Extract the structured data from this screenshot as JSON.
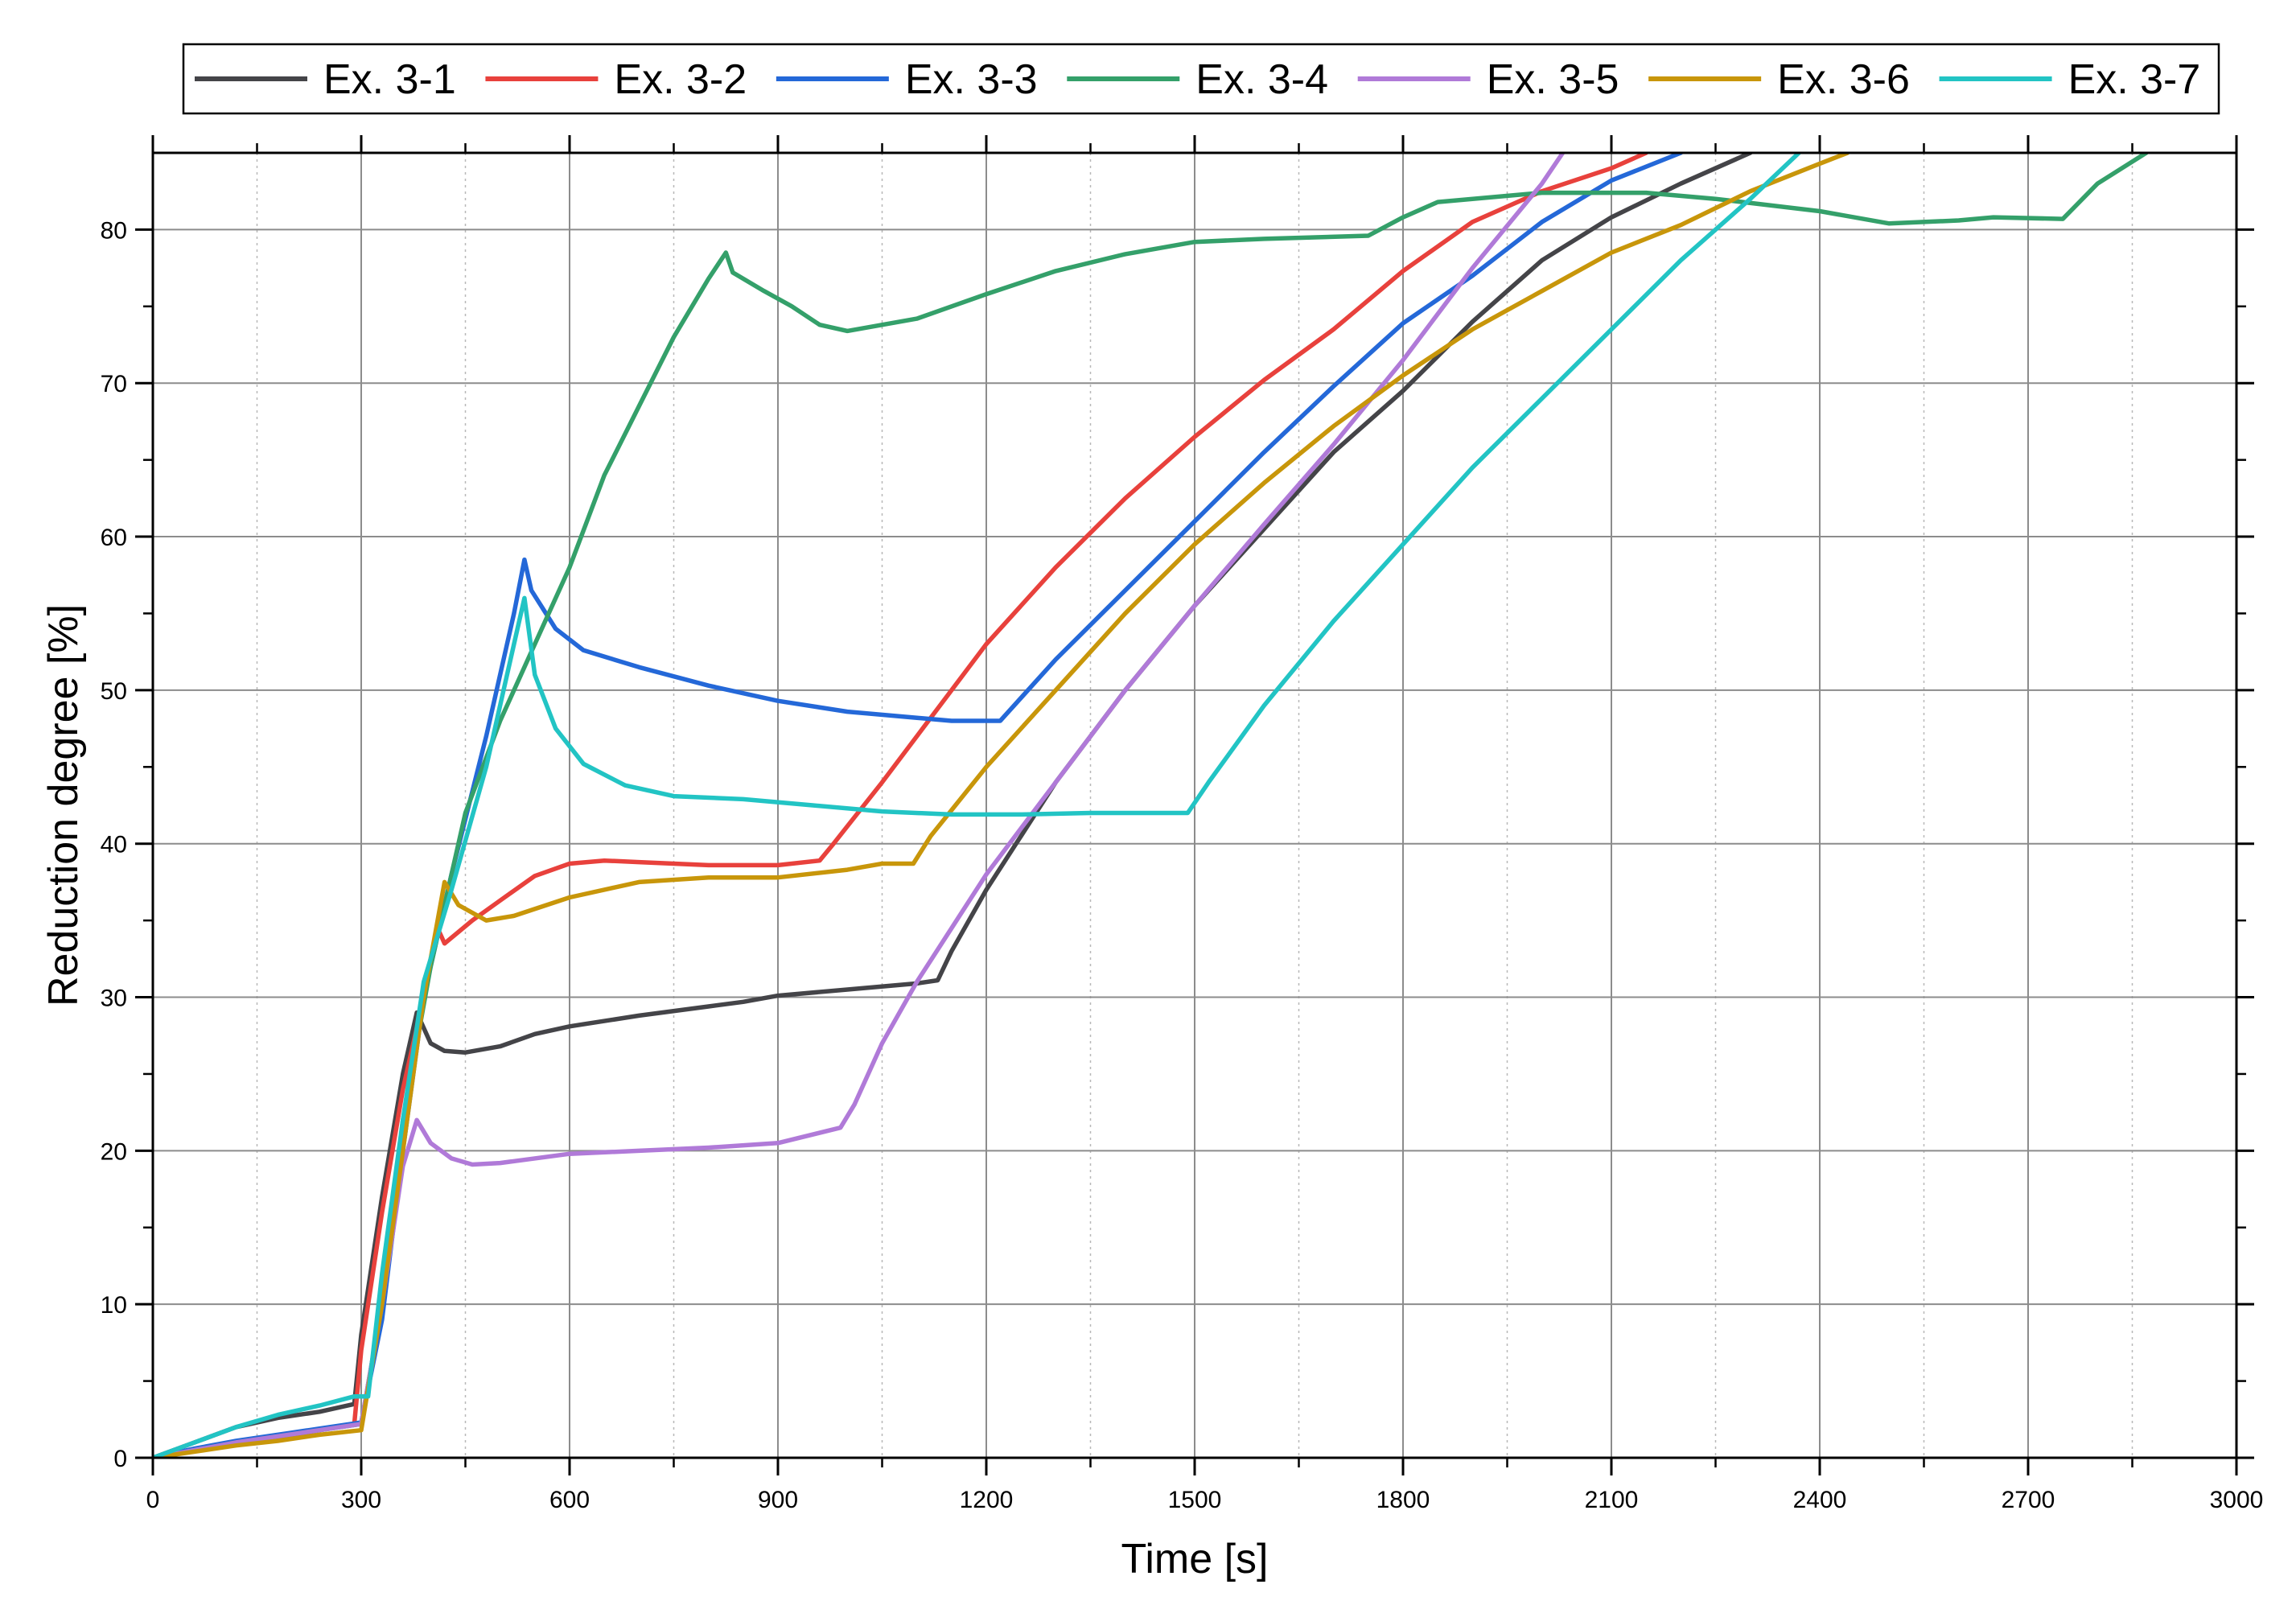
{
  "chart_data": {
    "type": "line",
    "title": "",
    "xlabel": "Time [s]",
    "ylabel": "Reduction degree [%]",
    "xlim": [
      0,
      3000
    ],
    "ylim": [
      0,
      85
    ],
    "x_ticks": [
      0,
      300,
      600,
      900,
      1200,
      1500,
      1800,
      2100,
      2400,
      2700,
      3000
    ],
    "y_ticks": [
      0,
      10,
      20,
      30,
      40,
      50,
      60,
      70,
      80
    ],
    "x_tick_labels": [
      "0",
      "300",
      "600",
      "900",
      "1200",
      "1500",
      "1800",
      "2100",
      "2400",
      "2700",
      "3000"
    ],
    "y_tick_labels": [
      "0",
      "10",
      "20",
      "30",
      "40",
      "50",
      "60",
      "70",
      "80"
    ],
    "grid": true,
    "legend_position": "top",
    "series": [
      {
        "name": "Ex. 3-1",
        "color": "#444448",
        "points": [
          [
            0,
            0
          ],
          [
            60,
            1
          ],
          [
            120,
            2
          ],
          [
            180,
            2.6
          ],
          [
            240,
            3
          ],
          [
            290,
            3.5
          ],
          [
            300,
            8
          ],
          [
            330,
            17
          ],
          [
            360,
            25
          ],
          [
            380,
            29
          ],
          [
            390,
            28
          ],
          [
            400,
            27
          ],
          [
            420,
            26.5
          ],
          [
            450,
            26.4
          ],
          [
            500,
            26.8
          ],
          [
            550,
            27.6
          ],
          [
            600,
            28.1
          ],
          [
            700,
            28.8
          ],
          [
            800,
            29.4
          ],
          [
            850,
            29.7
          ],
          [
            900,
            30.1
          ],
          [
            1000,
            30.5
          ],
          [
            1100,
            30.9
          ],
          [
            1130,
            31.1
          ],
          [
            1150,
            33
          ],
          [
            1200,
            37
          ],
          [
            1300,
            44
          ],
          [
            1400,
            50
          ],
          [
            1500,
            55.5
          ],
          [
            1600,
            60.5
          ],
          [
            1700,
            65.5
          ],
          [
            1800,
            69.5
          ],
          [
            1900,
            74
          ],
          [
            2000,
            78
          ],
          [
            2100,
            80.8
          ],
          [
            2200,
            83
          ],
          [
            2300,
            85
          ]
        ]
      },
      {
        "name": "Ex. 3-2",
        "color": "#e8413c",
        "points": [
          [
            0,
            0
          ],
          [
            60,
            0.5
          ],
          [
            120,
            1
          ],
          [
            180,
            1.3
          ],
          [
            240,
            1.8
          ],
          [
            290,
            2.2
          ],
          [
            300,
            7
          ],
          [
            330,
            16
          ],
          [
            360,
            24
          ],
          [
            390,
            30
          ],
          [
            410,
            34.5
          ],
          [
            420,
            33.5
          ],
          [
            460,
            35
          ],
          [
            500,
            36.3
          ],
          [
            550,
            37.9
          ],
          [
            600,
            38.7
          ],
          [
            650,
            38.9
          ],
          [
            700,
            38.8
          ],
          [
            800,
            38.6
          ],
          [
            900,
            38.6
          ],
          [
            960,
            38.9
          ],
          [
            980,
            40
          ],
          [
            1050,
            44
          ],
          [
            1100,
            47
          ],
          [
            1200,
            53
          ],
          [
            1300,
            58
          ],
          [
            1400,
            62.5
          ],
          [
            1500,
            66.5
          ],
          [
            1600,
            70.2
          ],
          [
            1700,
            73.5
          ],
          [
            1800,
            77.3
          ],
          [
            1900,
            80.5
          ],
          [
            2000,
            82.5
          ],
          [
            2100,
            84
          ],
          [
            2150,
            85
          ]
        ]
      },
      {
        "name": "Ex. 3-3",
        "color": "#2468d8",
        "points": [
          [
            0,
            0
          ],
          [
            60,
            0.6
          ],
          [
            120,
            1.1
          ],
          [
            180,
            1.5
          ],
          [
            240,
            1.9
          ],
          [
            300,
            2.3
          ],
          [
            330,
            9
          ],
          [
            360,
            20
          ],
          [
            390,
            30
          ],
          [
            430,
            38
          ],
          [
            480,
            47
          ],
          [
            520,
            55
          ],
          [
            535,
            58.5
          ],
          [
            545,
            56.5
          ],
          [
            580,
            54
          ],
          [
            620,
            52.6
          ],
          [
            700,
            51.5
          ],
          [
            800,
            50.3
          ],
          [
            900,
            49.3
          ],
          [
            1000,
            48.6
          ],
          [
            1100,
            48.2
          ],
          [
            1150,
            48
          ],
          [
            1220,
            48
          ],
          [
            1240,
            49
          ],
          [
            1300,
            52
          ],
          [
            1400,
            56.5
          ],
          [
            1500,
            61
          ],
          [
            1600,
            65.5
          ],
          [
            1700,
            69.8
          ],
          [
            1800,
            73.9
          ],
          [
            1900,
            77
          ],
          [
            2000,
            80.5
          ],
          [
            2100,
            83.2
          ],
          [
            2200,
            85
          ]
        ]
      },
      {
        "name": "Ex. 3-4",
        "color": "#34a06a",
        "points": [
          [
            0,
            0
          ],
          [
            60,
            0.5
          ],
          [
            120,
            1
          ],
          [
            180,
            1.4
          ],
          [
            240,
            1.8
          ],
          [
            300,
            2.2
          ],
          [
            330,
            10
          ],
          [
            360,
            22
          ],
          [
            400,
            32
          ],
          [
            450,
            42
          ],
          [
            500,
            48
          ],
          [
            550,
            53
          ],
          [
            600,
            58
          ],
          [
            650,
            64
          ],
          [
            700,
            68.5
          ],
          [
            750,
            73
          ],
          [
            800,
            76.8
          ],
          [
            825,
            78.5
          ],
          [
            835,
            77.2
          ],
          [
            880,
            76
          ],
          [
            920,
            75
          ],
          [
            960,
            73.8
          ],
          [
            1000,
            73.4
          ],
          [
            1100,
            74.2
          ],
          [
            1200,
            75.8
          ],
          [
            1300,
            77.3
          ],
          [
            1400,
            78.4
          ],
          [
            1500,
            79.2
          ],
          [
            1600,
            79.4
          ],
          [
            1750,
            79.6
          ],
          [
            1800,
            80.8
          ],
          [
            1850,
            81.8
          ],
          [
            2000,
            82.4
          ],
          [
            2150,
            82.4
          ],
          [
            2250,
            82
          ],
          [
            2400,
            81.2
          ],
          [
            2500,
            80.4
          ],
          [
            2600,
            80.6
          ],
          [
            2650,
            80.8
          ],
          [
            2750,
            80.7
          ],
          [
            2800,
            83
          ],
          [
            2870,
            85
          ]
        ]
      },
      {
        "name": "Ex. 3-5",
        "color": "#b07ad8",
        "points": [
          [
            0,
            0
          ],
          [
            60,
            0.5
          ],
          [
            120,
            1
          ],
          [
            180,
            1.4
          ],
          [
            240,
            1.8
          ],
          [
            300,
            2.2
          ],
          [
            330,
            10
          ],
          [
            360,
            19
          ],
          [
            380,
            22
          ],
          [
            400,
            20.5
          ],
          [
            430,
            19.5
          ],
          [
            460,
            19.1
          ],
          [
            500,
            19.2
          ],
          [
            600,
            19.8
          ],
          [
            700,
            20
          ],
          [
            800,
            20.2
          ],
          [
            900,
            20.5
          ],
          [
            990,
            21.5
          ],
          [
            1010,
            23
          ],
          [
            1050,
            27
          ],
          [
            1100,
            31
          ],
          [
            1200,
            38
          ],
          [
            1300,
            44
          ],
          [
            1400,
            50
          ],
          [
            1500,
            55.5
          ],
          [
            1600,
            60.8
          ],
          [
            1700,
            66
          ],
          [
            1800,
            71.5
          ],
          [
            1900,
            77.5
          ],
          [
            2000,
            83
          ],
          [
            2030,
            85
          ]
        ]
      },
      {
        "name": "Ex. 3-6",
        "color": "#c8960a",
        "points": [
          [
            0,
            0
          ],
          [
            60,
            0.4
          ],
          [
            120,
            0.8
          ],
          [
            180,
            1.1
          ],
          [
            240,
            1.5
          ],
          [
            300,
            1.8
          ],
          [
            330,
            10
          ],
          [
            360,
            20
          ],
          [
            390,
            30
          ],
          [
            420,
            37.5
          ],
          [
            440,
            36
          ],
          [
            480,
            35
          ],
          [
            520,
            35.3
          ],
          [
            600,
            36.5
          ],
          [
            700,
            37.5
          ],
          [
            800,
            37.8
          ],
          [
            900,
            37.8
          ],
          [
            1000,
            38.3
          ],
          [
            1050,
            38.7
          ],
          [
            1095,
            38.7
          ],
          [
            1120,
            40.5
          ],
          [
            1200,
            45
          ],
          [
            1300,
            50
          ],
          [
            1400,
            55
          ],
          [
            1500,
            59.5
          ],
          [
            1600,
            63.5
          ],
          [
            1700,
            67.2
          ],
          [
            1800,
            70.5
          ],
          [
            1900,
            73.5
          ],
          [
            2000,
            76
          ],
          [
            2100,
            78.5
          ],
          [
            2200,
            80.3
          ],
          [
            2300,
            82.5
          ],
          [
            2400,
            84.3
          ],
          [
            2440,
            85
          ]
        ]
      },
      {
        "name": "Ex. 3-7",
        "color": "#22c4c4",
        "points": [
          [
            0,
            0
          ],
          [
            60,
            1
          ],
          [
            120,
            2
          ],
          [
            180,
            2.8
          ],
          [
            240,
            3.4
          ],
          [
            290,
            4
          ],
          [
            310,
            4
          ],
          [
            330,
            12
          ],
          [
            360,
            22
          ],
          [
            390,
            31
          ],
          [
            430,
            37
          ],
          [
            480,
            45
          ],
          [
            520,
            53
          ],
          [
            535,
            56
          ],
          [
            550,
            51
          ],
          [
            580,
            47.5
          ],
          [
            620,
            45.2
          ],
          [
            680,
            43.8
          ],
          [
            750,
            43.1
          ],
          [
            850,
            42.9
          ],
          [
            950,
            42.5
          ],
          [
            1050,
            42.1
          ],
          [
            1150,
            41.9
          ],
          [
            1250,
            41.9
          ],
          [
            1350,
            42
          ],
          [
            1490,
            42
          ],
          [
            1520,
            44
          ],
          [
            1600,
            49
          ],
          [
            1700,
            54.5
          ],
          [
            1800,
            59.5
          ],
          [
            1900,
            64.5
          ],
          [
            2000,
            69
          ],
          [
            2100,
            73.5
          ],
          [
            2200,
            78
          ],
          [
            2300,
            82
          ],
          [
            2370,
            85
          ]
        ]
      }
    ]
  }
}
